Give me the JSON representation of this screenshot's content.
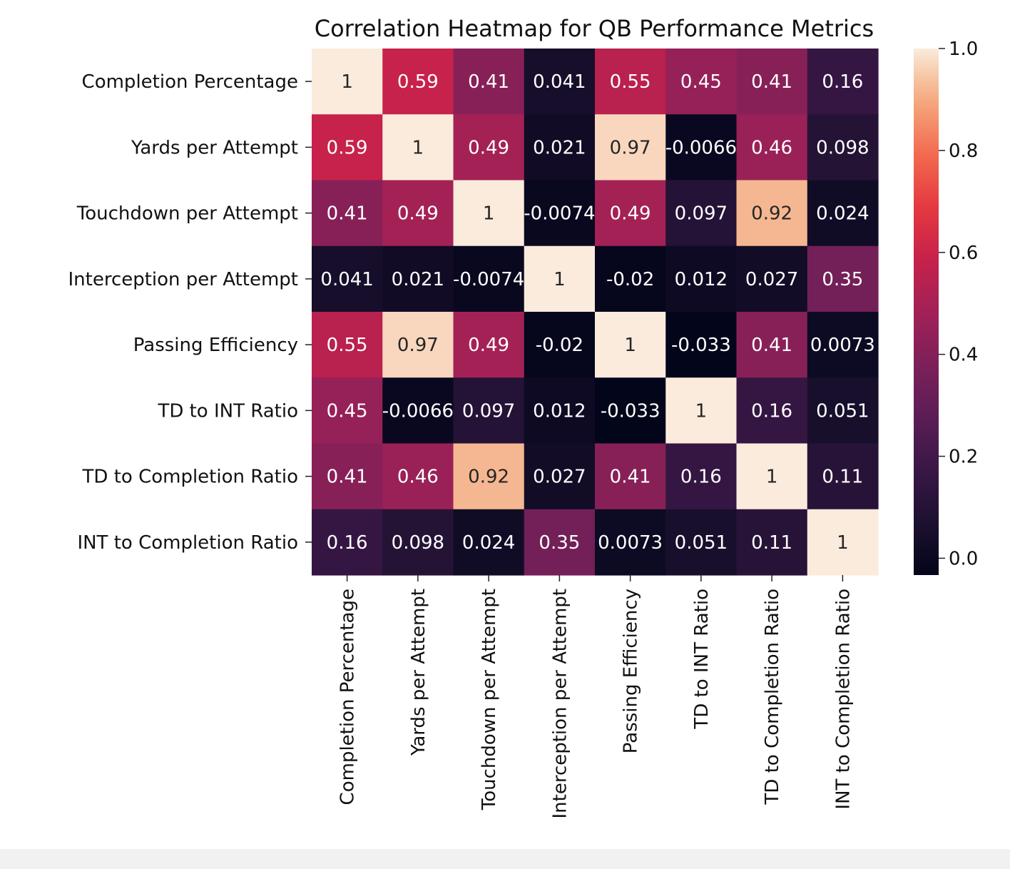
{
  "chart_data": {
    "type": "heatmap",
    "title": "Correlation Heatmap for QB Performance Metrics",
    "xlabel": "",
    "ylabel": "",
    "rows": [
      "Completion Percentage",
      "Yards per Attempt",
      "Touchdown per Attempt",
      "Interception per Attempt",
      "Passing Efficiency",
      "TD to INT Ratio",
      "TD to Completion Ratio",
      "INT to Completion Ratio"
    ],
    "columns": [
      "Completion Percentage",
      "Yards per Attempt",
      "Touchdown per Attempt",
      "Interception per Attempt",
      "Passing Efficiency",
      "TD to INT Ratio",
      "TD to Completion Ratio",
      "INT to Completion Ratio"
    ],
    "values": [
      [
        1,
        0.59,
        0.41,
        0.041,
        0.55,
        0.45,
        0.41,
        0.16
      ],
      [
        0.59,
        1,
        0.49,
        0.021,
        0.97,
        -0.0066,
        0.46,
        0.098
      ],
      [
        0.41,
        0.49,
        1,
        -0.0074,
        0.49,
        0.097,
        0.92,
        0.024
      ],
      [
        0.041,
        0.021,
        -0.0074,
        1,
        -0.02,
        0.012,
        0.027,
        0.35
      ],
      [
        0.55,
        0.97,
        0.49,
        -0.02,
        1,
        -0.033,
        0.41,
        0.0073
      ],
      [
        0.45,
        -0.0066,
        0.097,
        0.012,
        -0.033,
        1,
        0.16,
        0.051
      ],
      [
        0.41,
        0.46,
        0.92,
        0.027,
        0.41,
        0.16,
        1,
        0.11
      ],
      [
        0.16,
        0.098,
        0.024,
        0.35,
        0.0073,
        0.051,
        0.11,
        1
      ]
    ],
    "annotations": true,
    "colormap": "rocket",
    "colorbar": {
      "range": [
        -0.033,
        1.0
      ],
      "ticks": [
        0.0,
        0.2,
        0.4,
        0.6,
        0.8,
        1.0
      ],
      "tick_labels": [
        "0.0",
        "0.2",
        "0.4",
        "0.6",
        "0.8",
        "1.0"
      ]
    },
    "grid": false
  }
}
